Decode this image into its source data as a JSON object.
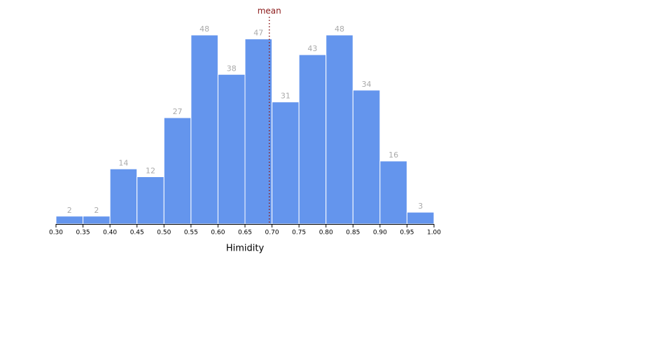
{
  "chart_data": {
    "type": "histogram",
    "bins": [
      0.3,
      0.35,
      0.4,
      0.45,
      0.5,
      0.55,
      0.6,
      0.65,
      0.7,
      0.75,
      0.8,
      0.85,
      0.9,
      0.95,
      1.0
    ],
    "values": [
      2,
      2,
      14,
      12,
      27,
      48,
      38,
      47,
      31,
      43,
      48,
      34,
      16,
      3
    ],
    "color": "#6495ed",
    "xlabel": "Himidity",
    "xlim": [
      0.3,
      1.0
    ],
    "ylim": [
      0,
      48
    ],
    "xticks": [
      {
        "value": 0.3,
        "label": "0.30"
      },
      {
        "value": 0.35,
        "label": "0.35"
      },
      {
        "value": 0.4,
        "label": "0.40"
      },
      {
        "value": 0.45,
        "label": "0.45"
      },
      {
        "value": 0.5,
        "label": "0.50"
      },
      {
        "value": 0.55,
        "label": "0.55"
      },
      {
        "value": 0.6,
        "label": "0.60"
      },
      {
        "value": 0.65,
        "label": "0.65"
      },
      {
        "value": 0.7,
        "label": "0.70"
      },
      {
        "value": 0.75,
        "label": "0.75"
      },
      {
        "value": 0.8,
        "label": "0.80"
      },
      {
        "value": 0.85,
        "label": "0.85"
      },
      {
        "value": 0.9,
        "label": "0.90"
      },
      {
        "value": 0.95,
        "label": "0.95"
      },
      {
        "value": 1.0,
        "label": "1.00"
      }
    ],
    "mean": {
      "label": "mean",
      "value": 0.695,
      "color": "#8b1a1a"
    }
  }
}
